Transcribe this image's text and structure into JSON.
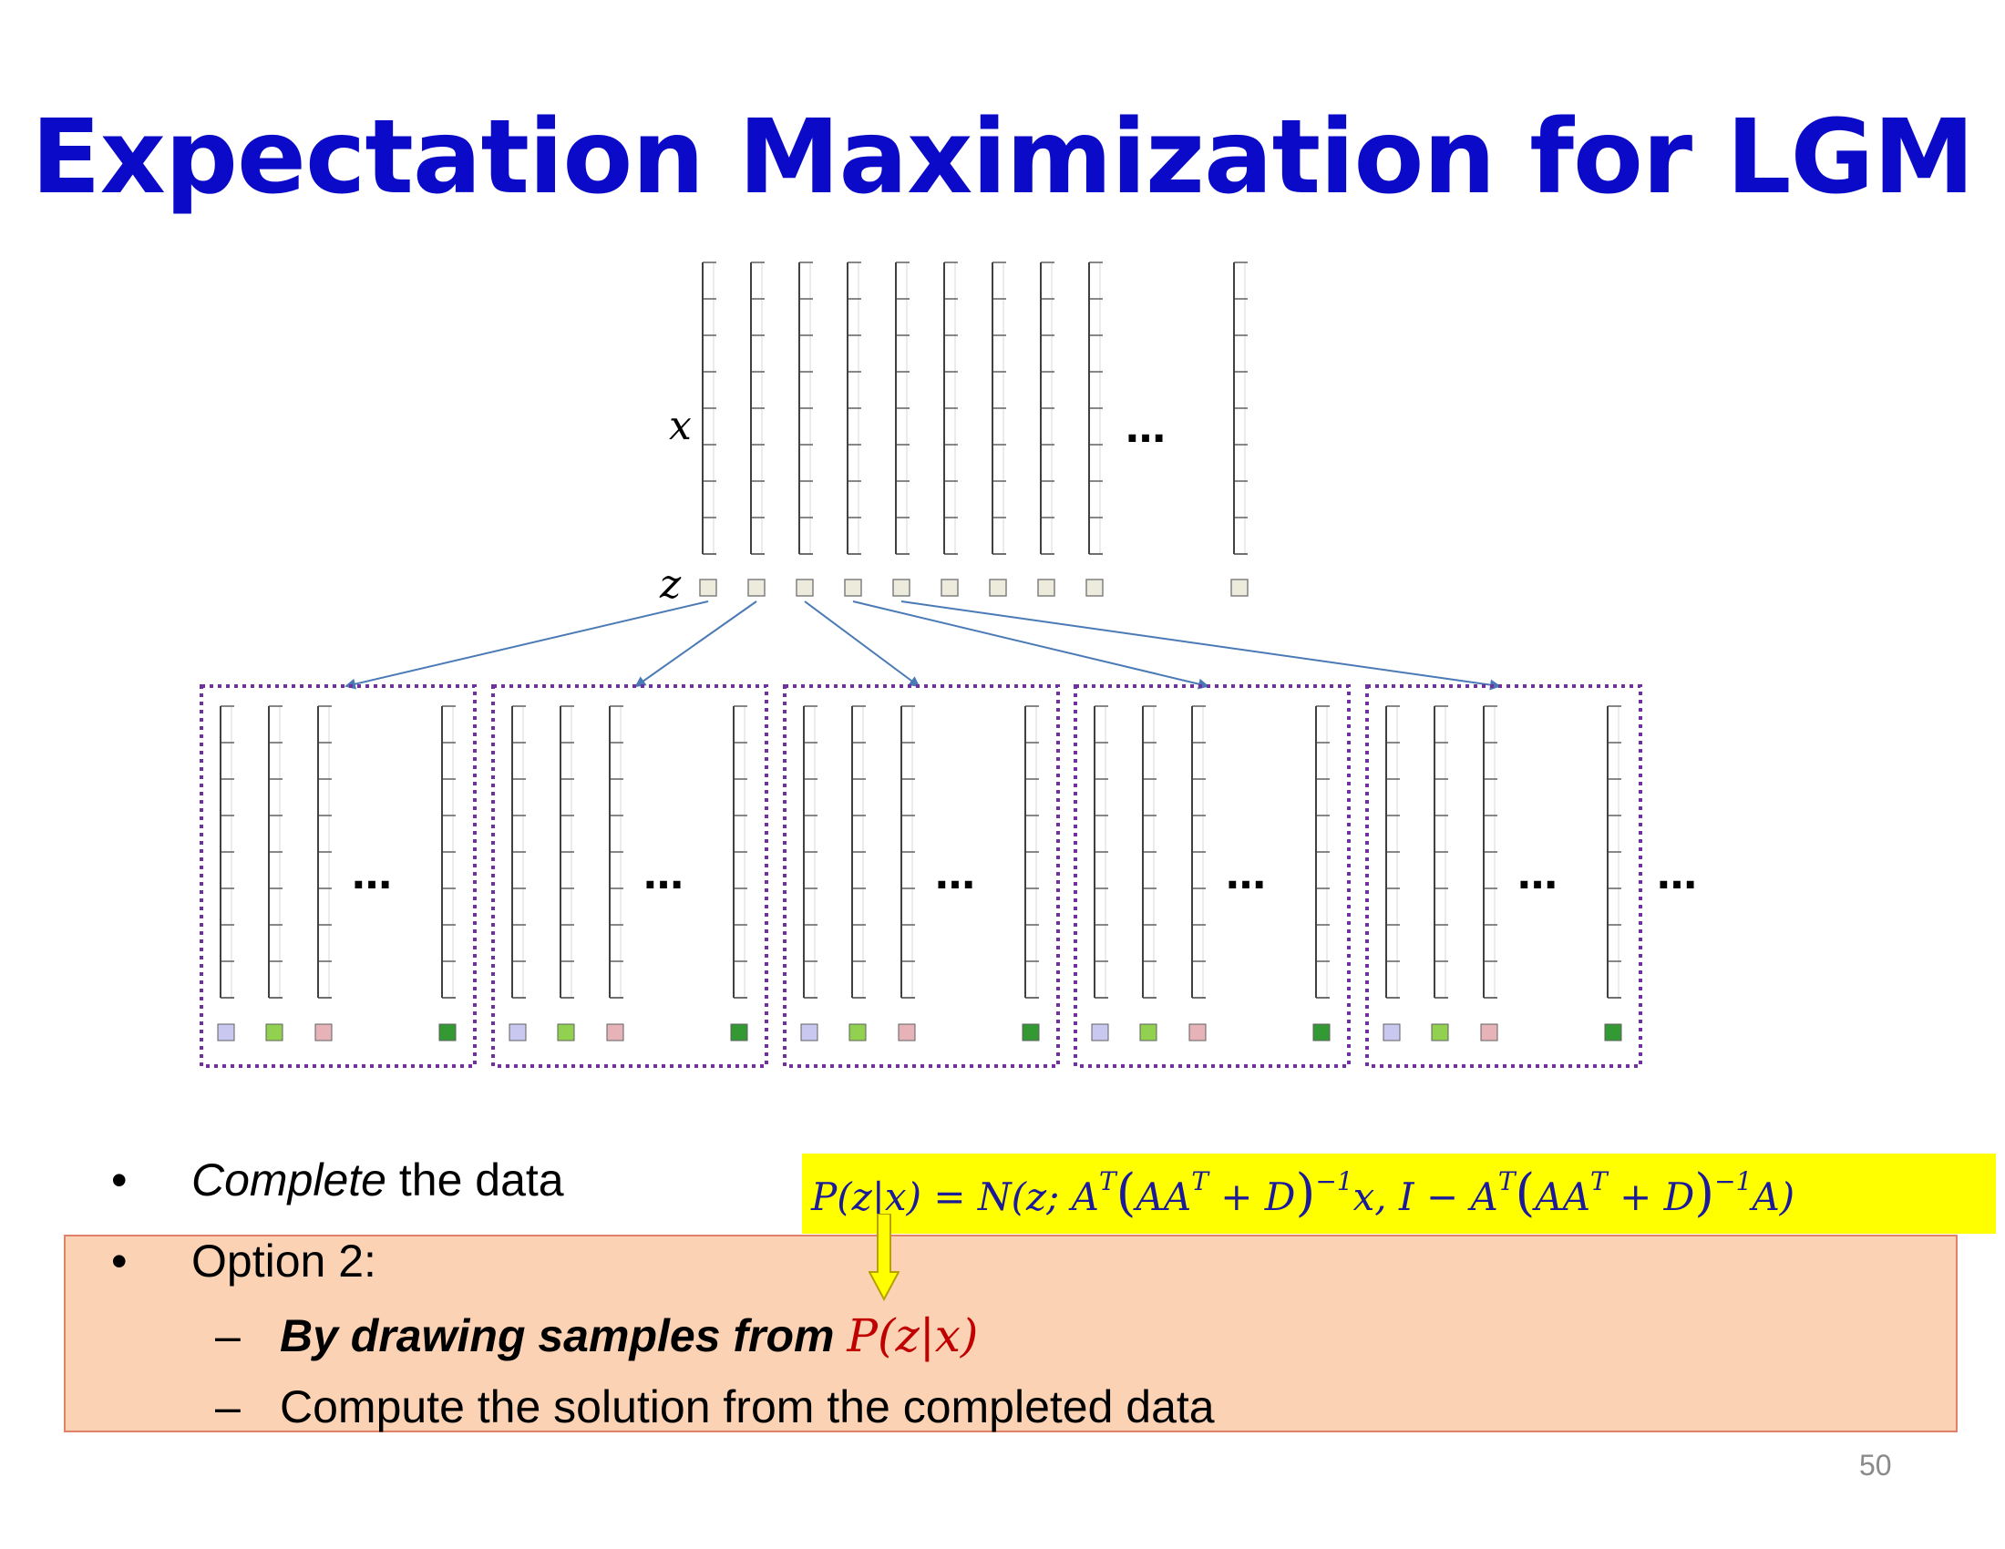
{
  "title": "Expectation Maximization for LGM",
  "diagram": {
    "x_label": "x",
    "z_label": "z",
    "ellipsis": "…",
    "colors": {
      "box_border": "#7030a0",
      "arrow": "#4a7ab5",
      "z_square": "#ecebdc",
      "sample_colors": [
        "#c8c8f0",
        "#92d050",
        "#e6b4b8",
        "#339933"
      ]
    }
  },
  "bullets": [
    {
      "dot": "•",
      "italic": "Complete",
      "rest": " the data"
    },
    {
      "dot": "•",
      "text": "Option 2:"
    }
  ],
  "sub_bullets": [
    {
      "dash": "–",
      "text": "By drawing samples from ",
      "math": "P(z|x)"
    },
    {
      "dash": "–",
      "text": "Compute the solution from the completed data"
    }
  ],
  "formula": {
    "background": "#ffff00",
    "lhs": "P(z|x) = N(z; A",
    "sup_t1": "T",
    "p1": "(",
    "aat1": "AA",
    "sup_t2": "T",
    "plus_d1": " + D",
    "p2": ")",
    "sup_inv1": "−1",
    "mid": "x, I − A",
    "sup_t3": "T",
    "p3": "(",
    "aat2": "AA",
    "sup_t4": "T",
    "plus_d2": " + D",
    "p4": ")",
    "sup_inv2": "−1",
    "end": "A)"
  },
  "page_number": "50"
}
